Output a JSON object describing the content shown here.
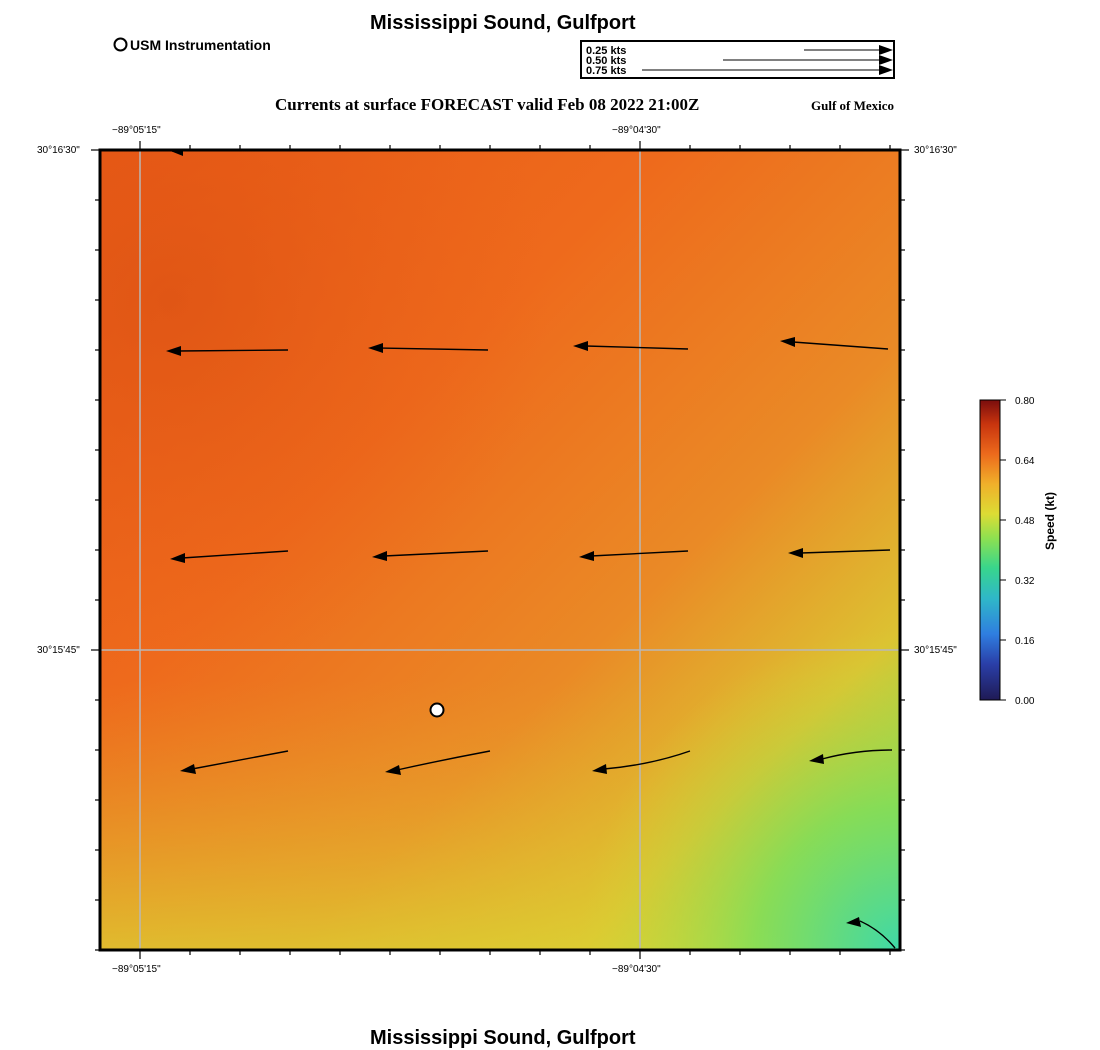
{
  "header": {
    "title": "Mississippi Sound, Gulfport",
    "subtitle": "Currents at surface FORECAST valid Feb 08 2022 21:00Z",
    "region": "Gulf of Mexico"
  },
  "legend": {
    "marker_label": "USM Instrumentation",
    "reference_arrows": [
      {
        "label": "0.25 kts",
        "speed_kt": 0.25
      },
      {
        "label": "0.50 kts",
        "speed_kt": 0.5
      },
      {
        "label": "0.75 kts",
        "speed_kt": 0.75
      }
    ]
  },
  "map": {
    "lon_labels": [
      "−89°05'15\"",
      "−89°04'30\""
    ],
    "lat_labels": [
      "30°16'30\"",
      "30°15'45\""
    ],
    "marker_label": "USM Instrumentation"
  },
  "colorbar": {
    "label": "Speed (kt)",
    "min": 0.0,
    "max": 0.8,
    "tick_values": [
      0.0,
      0.16,
      0.32,
      0.48,
      0.64,
      0.8
    ],
    "tick_labels": [
      "0.00",
      "0.16",
      "0.32",
      "0.48",
      "0.64",
      "0.80"
    ],
    "colors": [
      "#1f1a55",
      "#2f6fdc",
      "#36d6a8",
      "#7fe060",
      "#d9dc32",
      "#f2a028",
      "#e8551a",
      "#7a0d0d"
    ]
  },
  "footer": {
    "title": "Mississippi Sound, Gulfport"
  }
}
